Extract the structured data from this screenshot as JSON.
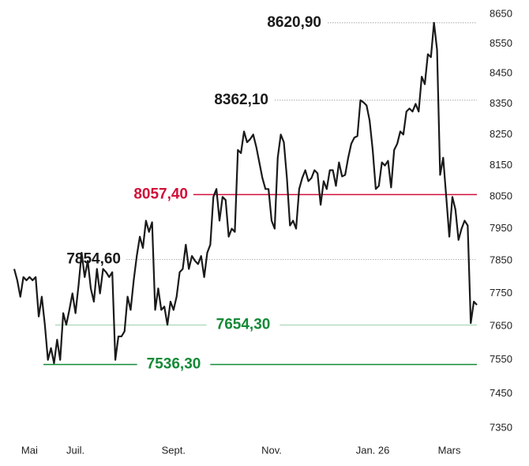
{
  "chart_data": {
    "type": "line",
    "yscale": "log",
    "ylim": [
      7350,
      8650
    ],
    "yticks": [
      8650,
      8550,
      8450,
      8350,
      8250,
      8150,
      8050,
      7950,
      7850,
      7750,
      7650,
      7550,
      7450,
      7350
    ],
    "grid": false,
    "categories": [
      null,
      null,
      null,
      null,
      null,
      "Mai",
      null,
      null,
      null,
      null,
      null,
      null,
      null,
      null,
      null,
      null,
      null,
      null,
      null,
      null,
      "Juil.",
      null,
      null,
      null,
      null,
      null,
      null,
      null,
      null,
      null,
      null,
      null,
      null,
      null,
      null,
      null,
      null,
      null,
      null,
      null,
      null,
      null,
      null,
      null,
      null,
      null,
      null,
      null,
      null,
      null,
      null,
      null,
      "Sept.",
      null,
      null,
      null,
      null,
      null,
      null,
      null,
      null,
      null,
      null,
      null,
      null,
      null,
      null,
      null,
      null,
      null,
      null,
      null,
      null,
      null,
      null,
      null,
      null,
      null,
      null,
      null,
      null,
      null,
      null,
      null,
      "Nov.",
      null,
      null,
      null,
      null,
      null,
      null,
      null,
      null,
      null,
      null,
      null,
      null,
      null,
      null,
      null,
      null,
      null,
      null,
      null,
      null,
      null,
      null,
      null,
      null,
      null,
      null,
      null,
      null,
      null,
      null,
      null,
      null,
      "Jan. 26",
      null,
      null,
      null,
      null,
      null,
      null,
      null,
      null,
      null,
      null,
      null,
      null,
      null,
      null,
      null,
      null,
      null,
      null,
      null,
      null,
      null,
      null,
      null,
      null,
      "Mars",
      null,
      null,
      null,
      null,
      null,
      null,
      null,
      null,
      null
    ],
    "series": [
      {
        "color": "#1a1a1a",
        "values": [
          7825,
          7790,
          7740,
          7800,
          7790,
          7800,
          7790,
          7800,
          7680,
          7740,
          7655,
          7550,
          7585,
          7540,
          7610,
          7550,
          7690,
          7655,
          7700,
          7750,
          7690,
          7775,
          7875,
          7800,
          7850,
          7765,
          7725,
          7825,
          7750,
          7825,
          7815,
          7800,
          7815,
          7550,
          7620,
          7620,
          7635,
          7740,
          7700,
          7790,
          7865,
          7925,
          7890,
          7975,
          7940,
          7970,
          7700,
          7765,
          7700,
          7710,
          7655,
          7725,
          7700,
          7740,
          7815,
          7825,
          7900,
          7825,
          7865,
          7850,
          7840,
          7865,
          7800,
          7875,
          7900,
          8050,
          8075,
          7975,
          8050,
          8040,
          7925,
          7950,
          7940,
          8200,
          8190,
          8260,
          8225,
          8235,
          8250,
          8210,
          8160,
          8110,
          8075,
          8075,
          7975,
          7950,
          8175,
          8250,
          8225,
          8110,
          7960,
          7975,
          7950,
          8075,
          8110,
          8135,
          8100,
          8110,
          8135,
          8125,
          8025,
          8100,
          8075,
          8135,
          8135,
          8085,
          8160,
          8115,
          8120,
          8175,
          8220,
          8240,
          8245,
          8362,
          8355,
          8345,
          8295,
          8200,
          8075,
          8085,
          8160,
          8150,
          8165,
          8080,
          8200,
          8220,
          8260,
          8250,
          8325,
          8335,
          8325,
          8350,
          8325,
          8440,
          8415,
          8515,
          8505,
          8621,
          8530,
          8120,
          8175,
          8050,
          7925,
          8050,
          8010,
          7915,
          7950,
          7975,
          7960,
          7660,
          7725,
          7715
        ]
      }
    ],
    "annotations": [
      {
        "value": 8620.9,
        "label": "8620,90",
        "color": "#1a1a1a",
        "style": "dotted"
      },
      {
        "value": 8362.1,
        "label": "8362,10",
        "color": "#1a1a1a",
        "style": "dotted"
      },
      {
        "value": 8057.4,
        "label": "8057,40",
        "color": "#d0103a",
        "style": "solid"
      },
      {
        "value": 7854.6,
        "label": "7854,60",
        "color": "#1a1a1a",
        "style": "dotted"
      },
      {
        "value": 7654.3,
        "label": "7654,30",
        "color": "#138a36",
        "style": "solid"
      },
      {
        "value": 7536.3,
        "label": "7536,30",
        "color": "#138a36",
        "style": "solid"
      }
    ]
  }
}
